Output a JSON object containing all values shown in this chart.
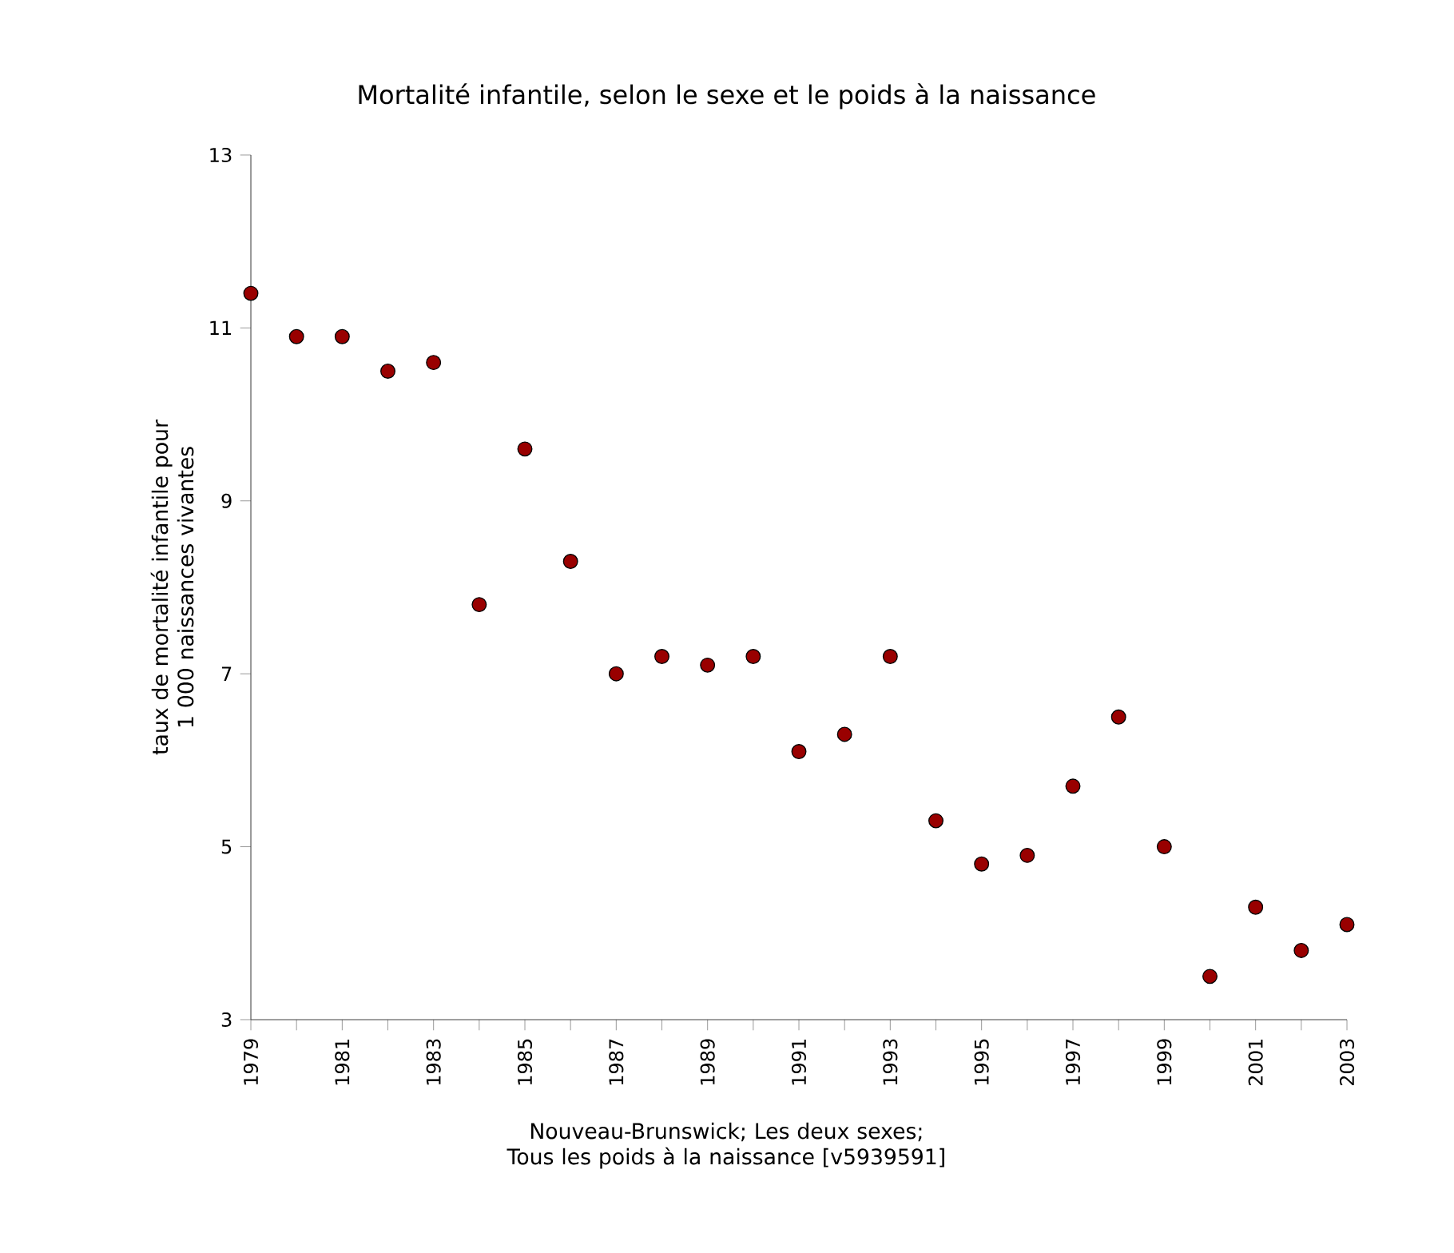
{
  "chart_data": {
    "type": "scatter",
    "title": "Mortalité infantile, selon le sexe et le poids à la naissance",
    "xlabel": "Nouveau-Brunswick; Les deux sexes; Tous les poids à la naissance [v5939591]",
    "ylabel": "taux de mortalité infantile pour 1 000 naissances vivantes",
    "x": [
      1979,
      1980,
      1981,
      1982,
      1983,
      1984,
      1985,
      1986,
      1987,
      1988,
      1989,
      1990,
      1991,
      1992,
      1993,
      1994,
      1995,
      1996,
      1997,
      1998,
      1999,
      2000,
      2001,
      2002,
      2003
    ],
    "series": [
      {
        "color": "#990000",
        "values": [
          11.4,
          10.9,
          10.9,
          10.5,
          10.6,
          7.8,
          9.6,
          8.3,
          7.0,
          7.2,
          7.1,
          7.2,
          6.1,
          6.3,
          7.2,
          5.3,
          4.8,
          4.9,
          5.7,
          6.5,
          5.0,
          3.5,
          4.3,
          3.8,
          4.1
        ]
      }
    ],
    "xlim": [
      1979,
      2003
    ],
    "xticks": [
      1979,
      {
        "value": 1980,
        "label": null
      },
      1981,
      {
        "value": 1982,
        "label": null
      },
      1983,
      {
        "value": 1984,
        "label": null
      },
      1985,
      {
        "value": 1986,
        "label": null
      },
      1987,
      {
        "value": 1988,
        "label": null
      },
      1989,
      {
        "value": 1990,
        "label": null
      },
      1991,
      {
        "value": 1992,
        "label": null
      },
      1993,
      {
        "value": 1994,
        "label": null
      },
      1995,
      {
        "value": 1996,
        "label": null
      },
      1997,
      {
        "value": 1998,
        "label": null
      },
      1999,
      {
        "value": 2000,
        "label": null
      },
      2001,
      {
        "value": 2002,
        "label": null
      },
      2003
    ],
    "ylim": [
      3,
      13
    ],
    "yticks": [
      3,
      5,
      7,
      9,
      11,
      13
    ],
    "grid": false
  }
}
